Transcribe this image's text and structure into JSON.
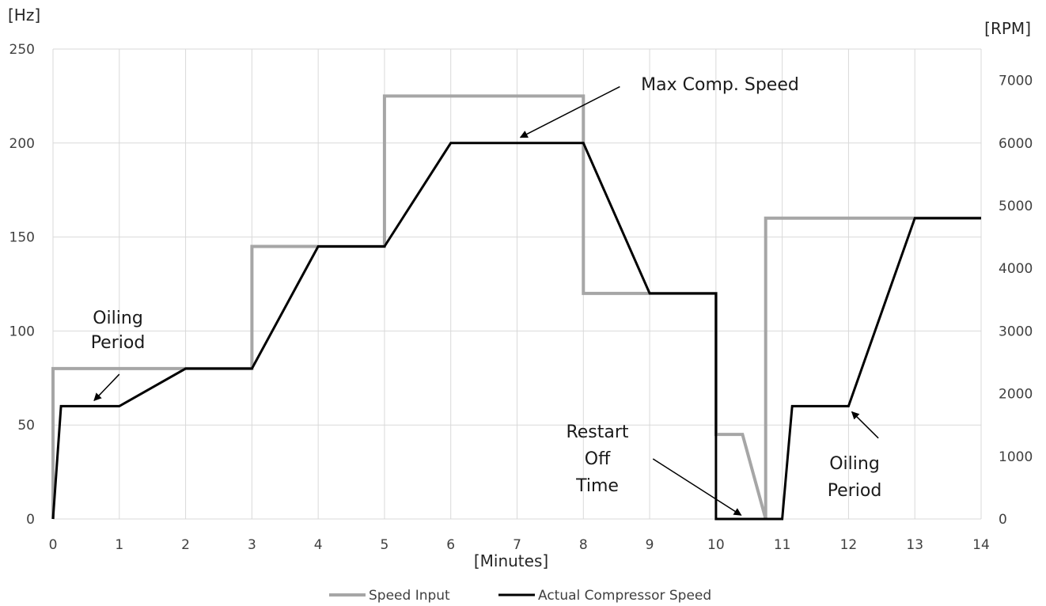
{
  "chart_data": {
    "type": "line",
    "xlabel": "[Minutes]",
    "ylabel": "[Hz]",
    "y2label": "[RPM]",
    "xlim": [
      0,
      14
    ],
    "ylim": [
      0,
      250
    ],
    "y2lim": [
      0,
      7500
    ],
    "x_ticks": [
      0,
      1,
      2,
      3,
      4,
      5,
      6,
      7,
      8,
      9,
      10,
      11,
      12,
      13,
      14
    ],
    "y_ticks": [
      0,
      50,
      100,
      150,
      200,
      250
    ],
    "y2_ticks": [
      0,
      1000,
      2000,
      3000,
      4000,
      5000,
      6000,
      7000
    ],
    "grid": true,
    "legend": "bottom",
    "series": [
      {
        "name": "Speed Input",
        "color": "#a6a6a6",
        "points": [
          [
            0,
            0
          ],
          [
            0,
            80
          ],
          [
            3,
            80
          ],
          [
            3,
            145
          ],
          [
            5,
            145
          ],
          [
            5,
            225
          ],
          [
            8,
            225
          ],
          [
            8,
            120
          ],
          [
            10,
            120
          ],
          [
            10,
            45
          ],
          [
            10.4,
            45
          ],
          [
            10.75,
            0
          ],
          [
            10.75,
            160
          ],
          [
            14,
            160
          ]
        ]
      },
      {
        "name": "Actual Compressor Speed",
        "color": "#000000",
        "points": [
          [
            0,
            0
          ],
          [
            0.12,
            60
          ],
          [
            1,
            60
          ],
          [
            2,
            80
          ],
          [
            3,
            80
          ],
          [
            4,
            145
          ],
          [
            5,
            145
          ],
          [
            6,
            200
          ],
          [
            8,
            200
          ],
          [
            9,
            120
          ],
          [
            10,
            120
          ],
          [
            10,
            0
          ],
          [
            11,
            0
          ],
          [
            11.15,
            60
          ],
          [
            12,
            60
          ],
          [
            13,
            160
          ],
          [
            14,
            160
          ]
        ]
      }
    ],
    "annotations": [
      {
        "lines": [
          "Oiling",
          "Period"
        ],
        "anchor": "text-left-low",
        "arrow_from": [
          1.0,
          77
        ],
        "arrow_to": [
          0.62,
          63
        ]
      },
      {
        "lines": [
          "Max Comp. Speed"
        ],
        "anchor": "text-top",
        "arrow_from": [
          8.55,
          230
        ],
        "arrow_to": [
          7.05,
          203
        ]
      },
      {
        "lines": [
          "Restart",
          "Off",
          "Time"
        ],
        "anchor": "text-bottom-mid",
        "arrow_from": [
          9.05,
          32
        ],
        "arrow_to": [
          10.38,
          2
        ]
      },
      {
        "lines": [
          "Oiling",
          "Period"
        ],
        "anchor": "text-right-low",
        "arrow_from": [
          12.45,
          43
        ],
        "arrow_to": [
          12.05,
          57
        ]
      }
    ]
  }
}
